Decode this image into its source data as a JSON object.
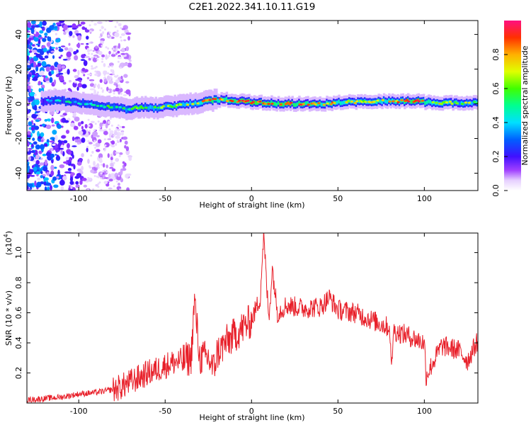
{
  "title": "C2E1.2022.341.10.11.G19",
  "colors": {
    "snr_line": "#e8202a",
    "frame": "#000000",
    "background": "#ffffff"
  },
  "chart_data": [
    {
      "type": "heatmap",
      "title": "C2E1.2022.341.10.11.G19",
      "xlabel": "Height of straight line (km)",
      "ylabel": "Frequency (Hz)",
      "xlim": [
        -130,
        131
      ],
      "ylim": [
        -50,
        48
      ],
      "xticks": [
        -100,
        -50,
        0,
        50,
        100
      ],
      "xtick_labels": [
        "-100",
        "-50",
        "0",
        "50",
        "100"
      ],
      "yticks": [
        -40,
        -20,
        0,
        20,
        40
      ],
      "ytick_labels": [
        "-40",
        "-20",
        "0",
        "20",
        "40"
      ],
      "colorbar": {
        "label": "Normalized spectral amplitude",
        "range": [
          0.0,
          1.0
        ],
        "ticks": [
          0.0,
          0.2,
          0.4,
          0.6,
          0.8
        ],
        "tick_labels": [
          "0.0",
          "0.2",
          "0.4",
          "0.6",
          "0.8"
        ],
        "colormap": "rainbow"
      },
      "ridge": {
        "x": [
          -122,
          -112,
          -104,
          -96,
          -88,
          -80,
          -72,
          -64,
          -56,
          -48,
          -40,
          -32,
          -24,
          -16,
          -8,
          0,
          8,
          16,
          24,
          32,
          40,
          48,
          56,
          64,
          72,
          80,
          88,
          96,
          104,
          112,
          120,
          131
        ],
        "y": [
          1.5,
          2,
          1,
          0,
          -1,
          -2,
          -3,
          -2,
          -2.5,
          -1.5,
          -0.5,
          0.5,
          2,
          2.5,
          1.5,
          1,
          0.5,
          0,
          0,
          0,
          0,
          0.5,
          1,
          1,
          1.5,
          1.5,
          1.5,
          1.5,
          0.5,
          0.5,
          0.5,
          0.5
        ],
        "amplitude": [
          0.25,
          0.35,
          0.4,
          0.4,
          0.45,
          0.5,
          0.5,
          0.55,
          0.6,
          0.6,
          0.6,
          0.65,
          0.85,
          0.8,
          0.85,
          0.9,
          0.85,
          0.9,
          0.9,
          0.85,
          0.8,
          0.75,
          0.7,
          0.65,
          0.7,
          0.7,
          0.8,
          0.95,
          0.7,
          0.65,
          0.6,
          0.6
        ]
      }
    },
    {
      "type": "line",
      "xlabel": "Height of straight line (km)",
      "ylabel": "SNR (10 * v/v)",
      "y_multiplier_label": "(x10",
      "y_multiplier_exp": "4",
      "y_multiplier_close": ")",
      "xlim": [
        -130,
        131
      ],
      "ylim": [
        0.0,
        1.13
      ],
      "xticks": [
        -100,
        -50,
        0,
        50,
        100
      ],
      "xtick_labels": [
        "-100",
        "-50",
        "0",
        "50",
        "100"
      ],
      "yticks": [
        0.2,
        0.4,
        0.6,
        0.8,
        1.0
      ],
      "ytick_labels": [
        "0.2",
        "0.4",
        "0.6",
        "0.8",
        "1.0"
      ],
      "series": [
        {
          "x": [
            -130,
            -120,
            -110,
            -100,
            -90,
            -80,
            -75,
            -70,
            -65,
            -60,
            -55,
            -50,
            -45,
            -40,
            -35,
            -33,
            -30,
            -25,
            -22,
            -20,
            -15,
            -10,
            -5,
            0,
            5,
            7,
            10,
            12,
            15,
            20,
            30,
            40,
            45,
            50,
            60,
            70,
            80,
            81,
            82,
            90,
            100,
            101,
            110,
            120,
            125,
            131
          ],
          "y": [
            0.02,
            0.03,
            0.04,
            0.06,
            0.07,
            0.09,
            0.11,
            0.14,
            0.17,
            0.2,
            0.22,
            0.25,
            0.27,
            0.28,
            0.3,
            0.68,
            0.3,
            0.3,
            0.22,
            0.33,
            0.4,
            0.45,
            0.5,
            0.55,
            0.7,
            1.12,
            0.55,
            0.9,
            0.6,
            0.65,
            0.63,
            0.64,
            0.7,
            0.62,
            0.6,
            0.55,
            0.5,
            0.2,
            0.48,
            0.45,
            0.4,
            0.18,
            0.38,
            0.35,
            0.28,
            0.42
          ]
        }
      ]
    }
  ]
}
